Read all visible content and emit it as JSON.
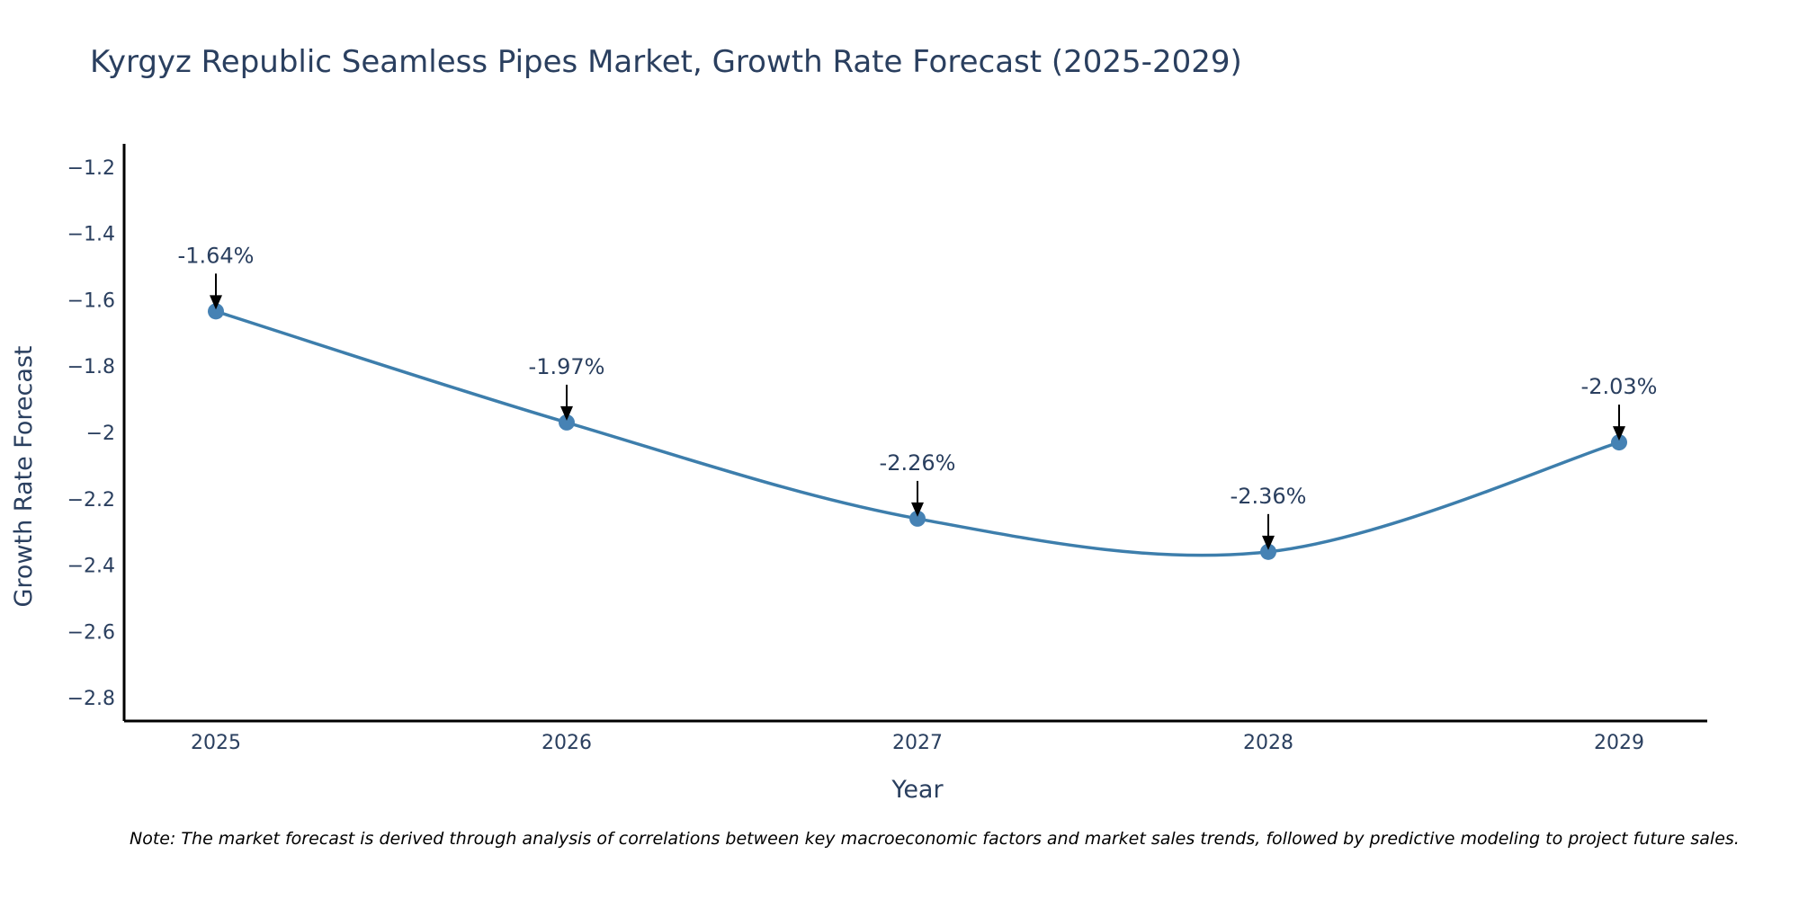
{
  "chart_data": {
    "type": "line",
    "title": "Kyrgyz Republic Seamless Pipes Market, Growth Rate Forecast (2025-2029)",
    "xlabel": "Year",
    "ylabel": "Growth Rate Forecast",
    "categories": [
      "2025",
      "2026",
      "2027",
      "2028",
      "2029"
    ],
    "values": [
      -1.635,
      -1.97,
      -2.26,
      -2.36,
      -2.03
    ],
    "annotations": [
      "-1.64%",
      "-1.97%",
      "-2.26%",
      "-2.36%",
      "-2.03%"
    ],
    "ylim": [
      -2.87,
      -1.13
    ],
    "yticks": [
      -1.2,
      -1.4,
      -1.6,
      -1.8,
      -2,
      -2.2,
      -2.4,
      -2.6,
      -2.8
    ],
    "ytick_labels": [
      "−1.2",
      "−1.4",
      "−1.6",
      "−1.8",
      "−2",
      "−2.2",
      "−2.4",
      "−2.6",
      "−2.8"
    ],
    "smoothing": "spline",
    "grid": false,
    "line_color": "#3d7eac",
    "marker_color": "#4682b4",
    "note": "Note: The market forecast is derived through analysis of correlations between key macroeconomic factors and market sales trends, followed by predictive modeling to project future sales."
  }
}
